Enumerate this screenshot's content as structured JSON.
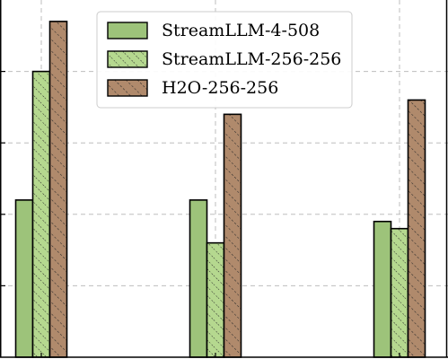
{
  "chart_data": {
    "type": "bar",
    "categories": [
      "",
      "",
      ""
    ],
    "series": [
      {
        "name": "StreamLLM-4-508",
        "values": [
          0.44,
          0.44,
          0.38
        ],
        "color": "#9dc37a",
        "hatch": "none"
      },
      {
        "name": "StreamLLM-256-256",
        "values": [
          0.8,
          0.32,
          0.36
        ],
        "color": "#b5d88f",
        "hatch": "diagonal-dense"
      },
      {
        "name": "H2O-256-256",
        "values": [
          0.94,
          0.68,
          0.72
        ],
        "color": "#b08a6c",
        "hatch": "diagonal"
      }
    ],
    "ylim": [
      0,
      1.0
    ],
    "grid": true,
    "legend_position": "top-center",
    "title": "",
    "xlabel": "",
    "ylabel": ""
  }
}
